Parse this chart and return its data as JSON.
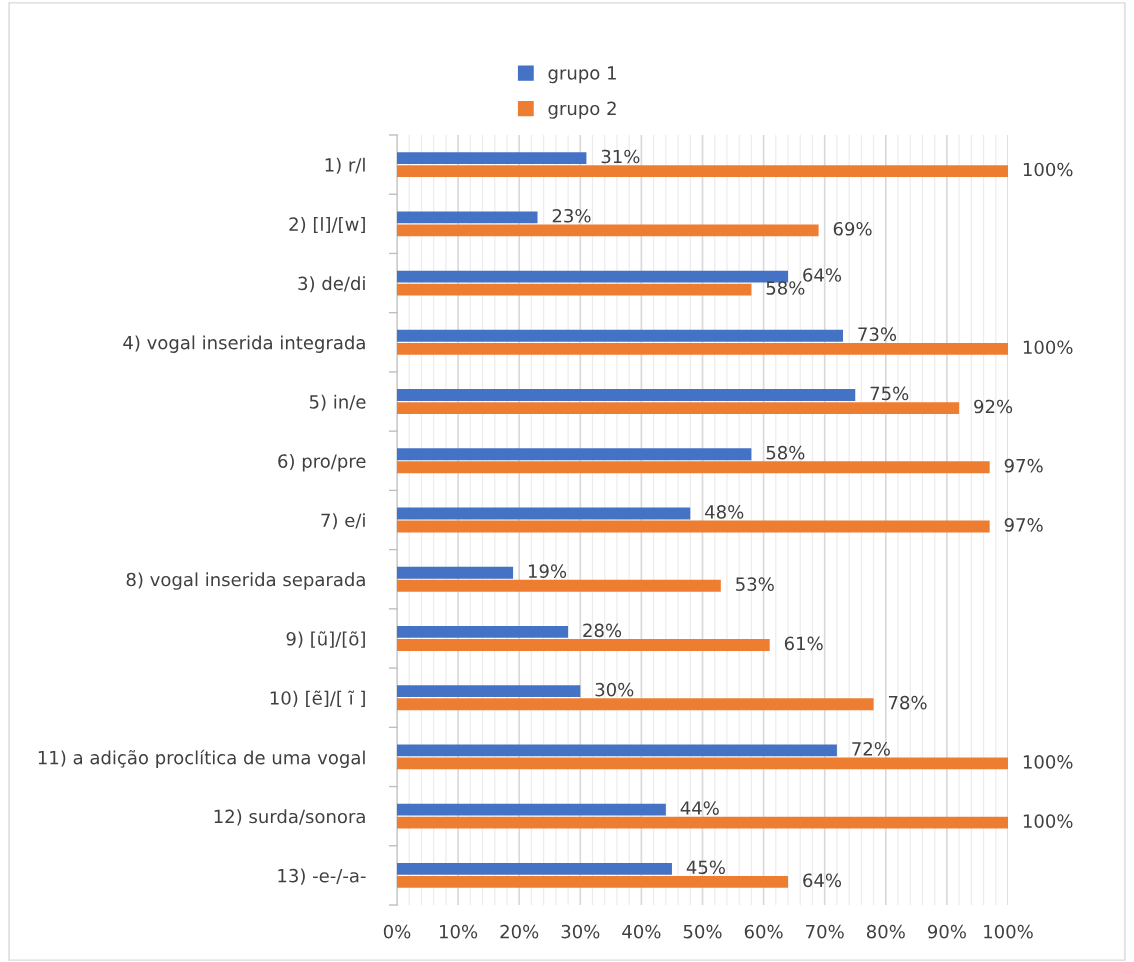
{
  "chart_data": {
    "type": "bar",
    "orientation": "horizontal",
    "legend": "top",
    "grid": "x",
    "categories": [
      "1) r/l",
      "2) [l]/[w]",
      "3) de/di",
      "4) vogal inserida integrada",
      "5) in/e",
      "6) pro/pre",
      "7) e/i",
      "8) vogal inserida separada",
      "9) [ũ]/[õ]",
      "10) [ẽ]/[ ĩ ]",
      "11) a adição proclítica de uma vogal",
      "12) surda/sonora",
      "13) -e-/-a-"
    ],
    "series": [
      {
        "name": "grupo 1",
        "color": "#4472c4",
        "values": [
          31,
          23,
          64,
          73,
          75,
          58,
          48,
          19,
          28,
          30,
          72,
          44,
          45
        ],
        "value_labels": [
          "31%",
          "23%",
          "64%",
          "73%",
          "75%",
          "58%",
          "48%",
          "19%",
          "28%",
          "30%",
          "72%",
          "44%",
          "45%"
        ]
      },
      {
        "name": "grupo 2",
        "color": "#ed7d31",
        "values": [
          100,
          69,
          58,
          100,
          92,
          97,
          97,
          53,
          61,
          78,
          100,
          100,
          64
        ],
        "value_labels": [
          "100%",
          "69%",
          "58%",
          "100%",
          "92%",
          "97%",
          "97%",
          "53%",
          "61%",
          "78%",
          "100%",
          "100%",
          "64%"
        ]
      }
    ],
    "xlim": [
      0,
      100
    ],
    "xticks": [
      {
        "value": 0,
        "label": "0%"
      },
      {
        "value": 2,
        "label": null
      },
      {
        "value": 4,
        "label": null
      },
      {
        "value": 6,
        "label": null
      },
      {
        "value": 8,
        "label": null
      },
      {
        "value": 10,
        "label": "10%"
      },
      {
        "value": 12,
        "label": null
      },
      {
        "value": 14,
        "label": null
      },
      {
        "value": 16,
        "label": null
      },
      {
        "value": 18,
        "label": null
      },
      {
        "value": 20,
        "label": "20%"
      },
      {
        "value": 22,
        "label": null
      },
      {
        "value": 24,
        "label": null
      },
      {
        "value": 26,
        "label": null
      },
      {
        "value": 28,
        "label": null
      },
      {
        "value": 30,
        "label": "30%"
      },
      {
        "value": 32,
        "label": null
      },
      {
        "value": 34,
        "label": null
      },
      {
        "value": 36,
        "label": null
      },
      {
        "value": 38,
        "label": null
      },
      {
        "value": 40,
        "label": "40%"
      },
      {
        "value": 42,
        "label": null
      },
      {
        "value": 44,
        "label": null
      },
      {
        "value": 46,
        "label": null
      },
      {
        "value": 48,
        "label": null
      },
      {
        "value": 50,
        "label": "50%"
      },
      {
        "value": 52,
        "label": null
      },
      {
        "value": 54,
        "label": null
      },
      {
        "value": 56,
        "label": null
      },
      {
        "value": 58,
        "label": null
      },
      {
        "value": 60,
        "label": "60%"
      },
      {
        "value": 62,
        "label": null
      },
      {
        "value": 64,
        "label": null
      },
      {
        "value": 66,
        "label": null
      },
      {
        "value": 68,
        "label": null
      },
      {
        "value": 70,
        "label": "70%"
      },
      {
        "value": 72,
        "label": null
      },
      {
        "value": 74,
        "label": null
      },
      {
        "value": 76,
        "label": null
      },
      {
        "value": 78,
        "label": null
      },
      {
        "value": 80,
        "label": "80%"
      },
      {
        "value": 82,
        "label": null
      },
      {
        "value": 84,
        "label": null
      },
      {
        "value": 86,
        "label": null
      },
      {
        "value": 88,
        "label": null
      },
      {
        "value": 90,
        "label": "90%"
      },
      {
        "value": 92,
        "label": null
      },
      {
        "value": 94,
        "label": null
      },
      {
        "value": 96,
        "label": null
      },
      {
        "value": 98,
        "label": null
      },
      {
        "value": 100,
        "label": "100%"
      }
    ]
  }
}
